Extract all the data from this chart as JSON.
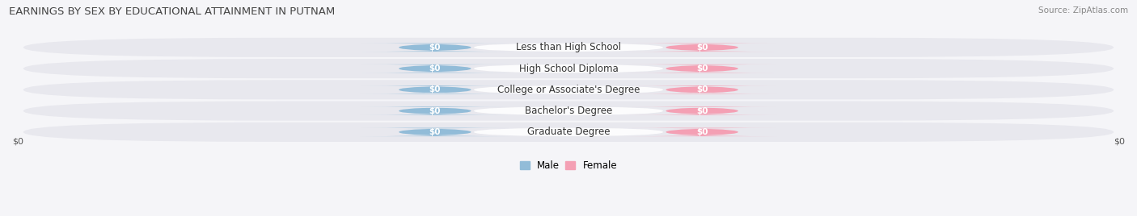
{
  "title": "EARNINGS BY SEX BY EDUCATIONAL ATTAINMENT IN PUTNAM",
  "source": "Source: ZipAtlas.com",
  "categories": [
    "Less than High School",
    "High School Diploma",
    "College or Associate's Degree",
    "Bachelor's Degree",
    "Graduate Degree"
  ],
  "male_values": [
    0,
    0,
    0,
    0,
    0
  ],
  "female_values": [
    0,
    0,
    0,
    0,
    0
  ],
  "male_color": "#92bcd8",
  "female_color": "#f4a0b4",
  "row_color": "#e8e8ee",
  "row_color2": "#ebebf0",
  "bg_color": "#f5f5f8",
  "xlabel_left": "$0",
  "xlabel_right": "$0",
  "legend_male": "Male",
  "legend_female": "Female",
  "title_fontsize": 9.5,
  "source_fontsize": 7.5,
  "cat_fontsize": 8.5,
  "bar_label_fontsize": 7.5,
  "axis_label_fontsize": 8,
  "figsize": [
    14.06,
    2.68
  ],
  "dpi": 100
}
